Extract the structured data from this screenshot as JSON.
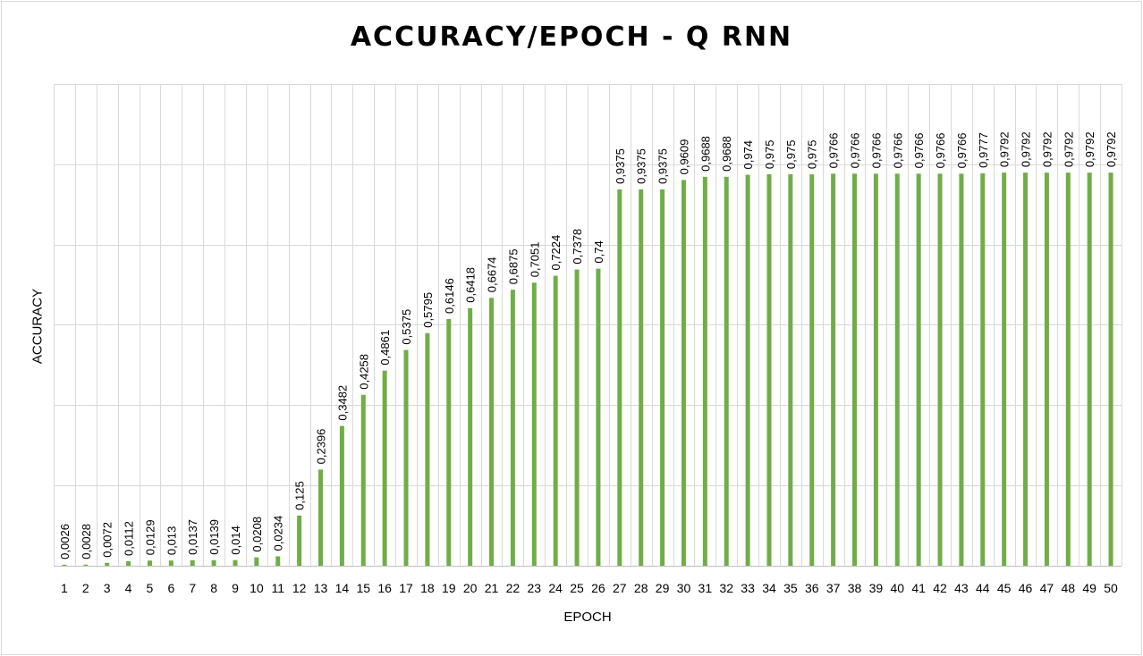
{
  "chart_data": {
    "type": "bar",
    "title": "ACCURACY/EPOCH - Q RNN",
    "xlabel": "EPOCH",
    "ylabel": "ACCURACY",
    "ylim": [
      0,
      1.2
    ],
    "grid": true,
    "legend": "none",
    "bar_color": "#70ad47",
    "categories": [
      "1",
      "2",
      "3",
      "4",
      "5",
      "6",
      "7",
      "8",
      "9",
      "10",
      "11",
      "12",
      "13",
      "14",
      "15",
      "16",
      "17",
      "18",
      "19",
      "20",
      "21",
      "22",
      "23",
      "24",
      "25",
      "26",
      "27",
      "28",
      "29",
      "30",
      "31",
      "32",
      "33",
      "34",
      "35",
      "36",
      "37",
      "38",
      "39",
      "40",
      "41",
      "42",
      "43",
      "44",
      "45",
      "46",
      "47",
      "48",
      "49",
      "50"
    ],
    "values": [
      0.0026,
      0.0028,
      0.0072,
      0.0112,
      0.0129,
      0.013,
      0.0137,
      0.0139,
      0.014,
      0.0208,
      0.0234,
      0.125,
      0.2396,
      0.3482,
      0.4258,
      0.4861,
      0.5375,
      0.5795,
      0.6146,
      0.6418,
      0.6674,
      0.6875,
      0.7051,
      0.7224,
      0.7378,
      0.74,
      0.9375,
      0.9375,
      0.9375,
      0.9609,
      0.9688,
      0.9688,
      0.974,
      0.975,
      0.975,
      0.975,
      0.9766,
      0.9766,
      0.9766,
      0.9766,
      0.9766,
      0.9766,
      0.9766,
      0.9777,
      0.9792,
      0.9792,
      0.9792,
      0.9792,
      0.9792,
      0.9792
    ],
    "data_labels": [
      "0,0026",
      "0,0028",
      "0,0072",
      "0,0112",
      "0,0129",
      "0,013",
      "0,0137",
      "0,0139",
      "0,014",
      "0,0208",
      "0,0234",
      "0,125",
      "0,2396",
      "0,3482",
      "0,4258",
      "0,4861",
      "0,5375",
      "0,5795",
      "0,6146",
      "0,6418",
      "0,6674",
      "0,6875",
      "0,7051",
      "0,7224",
      "0,7378",
      "0,74",
      "0,9375",
      "0,9375",
      "0,9375",
      "0,9609",
      "0,9688",
      "0,9688",
      "0,974",
      "0,975",
      "0,975",
      "0,975",
      "0,9766",
      "0,9766",
      "0,9766",
      "0,9766",
      "0,9766",
      "0,9766",
      "0,9766",
      "0,9777",
      "0,9792",
      "0,9792",
      "0,9792",
      "0,9792",
      "0,9792",
      "0,9792"
    ]
  }
}
